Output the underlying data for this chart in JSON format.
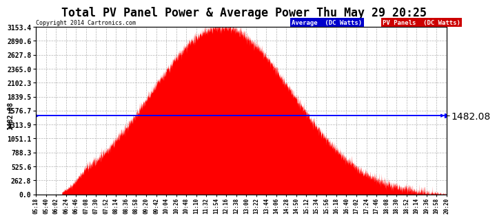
{
  "title": "Total PV Panel Power & Average Power Thu May 29 20:25",
  "copyright": "Copyright 2014 Cartronics.com",
  "legend_avg_label": "Average  (DC Watts)",
  "legend_pv_label": "PV Panels  (DC Watts)",
  "legend_avg_bg": "#0000cc",
  "legend_pv_bg": "#cc0000",
  "average_value": 1482.08,
  "ymax": 3153.4,
  "ymin": 0.0,
  "yticks": [
    0.0,
    262.8,
    525.6,
    788.3,
    1051.1,
    1313.9,
    1576.7,
    1839.5,
    2102.3,
    2365.0,
    2627.8,
    2890.6,
    3153.4
  ],
  "background_color": "#ffffff",
  "fill_color": "#ff0000",
  "avg_line_color": "#0000ff",
  "grid_color": "#aaaaaa",
  "title_fontsize": 12,
  "x_start_total_min": 318,
  "x_end_total_min": 1220,
  "x_interval_min": 22,
  "peak_total_min": 726,
  "peak_value": 3153.4,
  "bell_sigma": 155,
  "noise_seed": 42,
  "noise_std": 50,
  "left_label": "1482.08",
  "right_label": "1482.08"
}
